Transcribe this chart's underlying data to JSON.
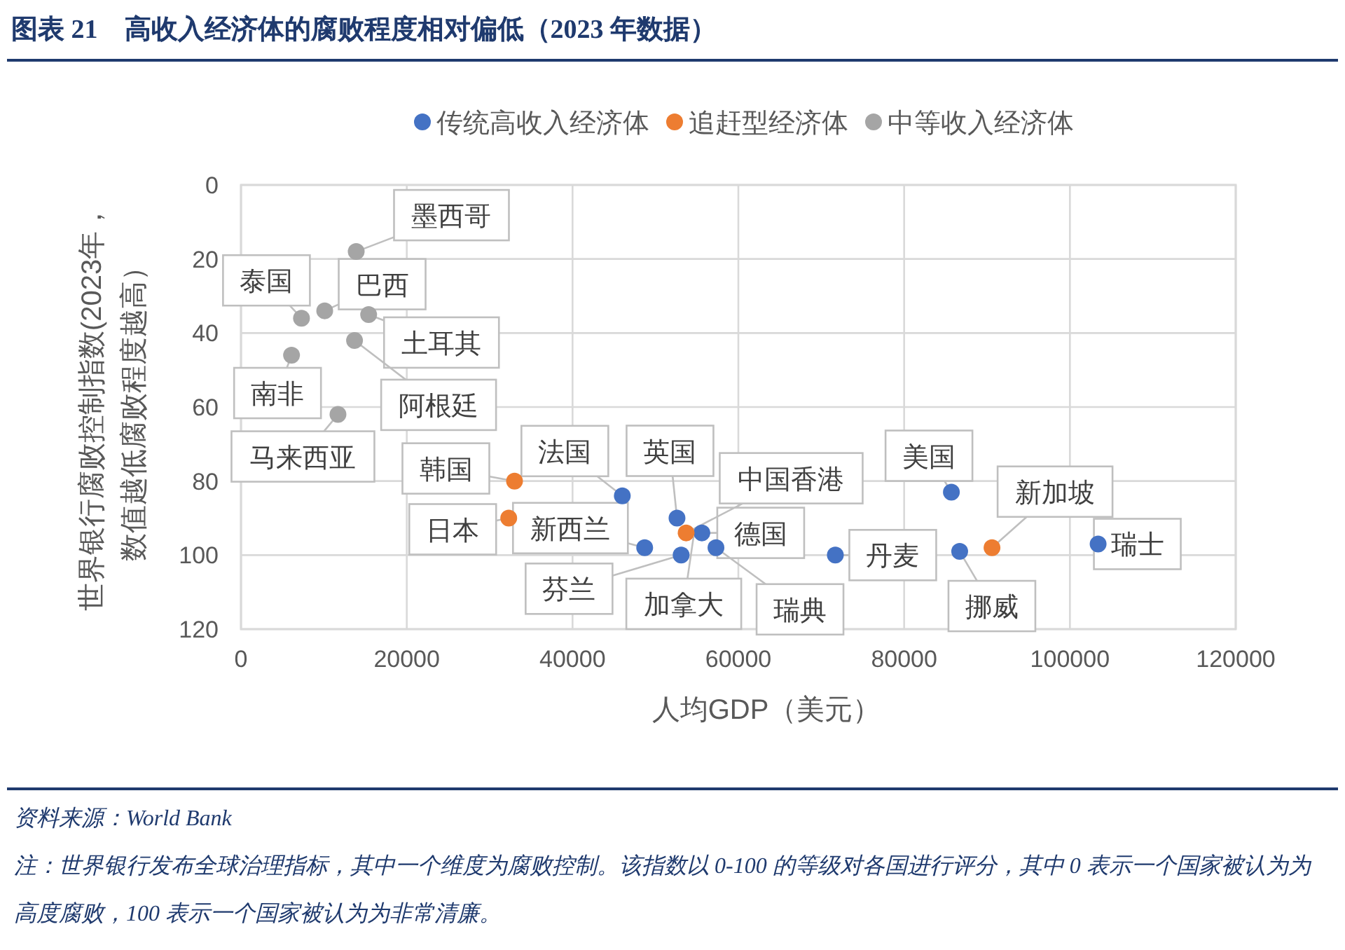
{
  "chart_data": {
    "type": "scatter",
    "title": "图表 21　高收入经济体的腐败程度相对偏低（2023 年数据）",
    "xlabel": "人均GDP（美元）",
    "ylabel": "世界银行腐败控制指数(2023年，数值越低腐败程度越高）",
    "series": [
      {
        "name": "传统高收入经济体",
        "color": "#4472c4",
        "x": [
          46000,
          48700,
          52600,
          53100,
          null,
          55600,
          57300,
          71700,
          85700,
          86700,
          103400
        ],
        "values": [
          84,
          98,
          90,
          100,
          null,
          94,
          98,
          100,
          83,
          99,
          97
        ]
      },
      {
        "name": "追赶型经济体",
        "color": "#ed7d31",
        "x": [
          33000,
          32300,
          53700,
          90600
        ],
        "values": [
          80,
          90,
          94,
          98
        ]
      },
      {
        "name": "中等收入经济体",
        "color": "#a5a5a5",
        "x": [
          13900,
          7300,
          10100,
          15400,
          13700,
          6100,
          11700
        ],
        "values": [
          18,
          36,
          34,
          35,
          42,
          46,
          62
        ]
      }
    ],
    "xlim": [
      0,
      120000
    ],
    "xticks": [
      0,
      20000,
      40000,
      60000,
      80000,
      100000,
      120000
    ],
    "ylim": [
      120,
      0
    ],
    "yticks": [
      0,
      20,
      40,
      60,
      80,
      100,
      120
    ],
    "grid": true,
    "legend": "top",
    "marker": "circle",
    "annotations": [
      {
        "text": "法国",
        "x": 46000,
        "y": 84
      },
      {
        "text": "新西兰",
        "x": 48700,
        "y": 98
      },
      {
        "text": "英国",
        "x": 52600,
        "y": 90
      },
      {
        "text": "芬兰",
        "x": 53100,
        "y": 100
      },
      {
        "text": "加拿大",
        "x": 54600,
        "y": 95
      },
      {
        "text": "德国",
        "x": 55600,
        "y": 94
      },
      {
        "text": "瑞典",
        "x": 57300,
        "y": 98
      },
      {
        "text": "丹麦",
        "x": 71700,
        "y": 100
      },
      {
        "text": "美国",
        "x": 85700,
        "y": 83
      },
      {
        "text": "挪威",
        "x": 86700,
        "y": 99
      },
      {
        "text": "瑞士",
        "x": 103400,
        "y": 97
      },
      {
        "text": "韩国",
        "x": 33000,
        "y": 80
      },
      {
        "text": "日本",
        "x": 32300,
        "y": 90
      },
      {
        "text": "中国香港",
        "x": 53700,
        "y": 94
      },
      {
        "text": "新加坡",
        "x": 90600,
        "y": 98
      },
      {
        "text": "墨西哥",
        "x": 13900,
        "y": 18
      },
      {
        "text": "泰国",
        "x": 7300,
        "y": 36
      },
      {
        "text": "巴西",
        "x": 10100,
        "y": 34
      },
      {
        "text": "土耳其",
        "x": 15400,
        "y": 35
      },
      {
        "text": "阿根廷",
        "x": 13700,
        "y": 42
      },
      {
        "text": "南非",
        "x": 6100,
        "y": 46
      },
      {
        "text": "马来西亚",
        "x": 11700,
        "y": 62
      },
      "资料来源：World Bank",
      "注：世界银行发布全球治理指标，其中一个维度为腐败控制。该指数以 0-100 的等级对各国进行评分，其中 0 表示一个国家被认为为高度腐败，100 表示一个国家被认为为非常清廉。"
    ]
  }
}
